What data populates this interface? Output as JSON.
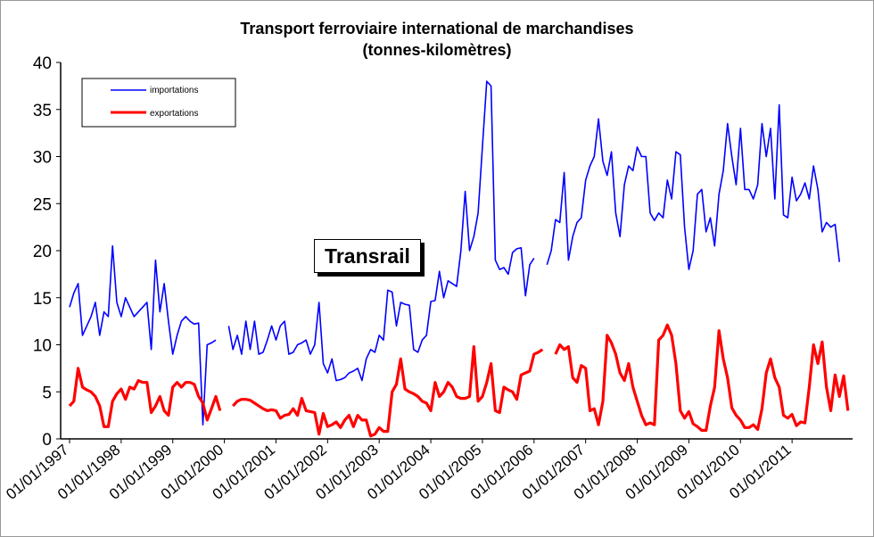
{
  "chart_data": {
    "type": "line",
    "title": "Transport ferroviaire international  de marchandises",
    "subtitle": "(tonnes-kilomètres)",
    "annotation": "Transrail",
    "ylim": [
      0,
      40
    ],
    "y_ticks": [
      "0",
      "5",
      "10",
      "15",
      "20",
      "25",
      "30",
      "35",
      "40"
    ],
    "x_ticks": [
      "01/01/1997",
      "01/01/1998",
      "01/01/1999",
      "01/01/2000",
      "01/01/2001",
      "01/01/2002",
      "01/01/2003",
      "01/01/2004",
      "01/01/2005",
      "01/01/2006",
      "01/01/2007",
      "01/01/2008",
      "01/01/2009",
      "01/01/2010",
      "01/01/2011"
    ],
    "grid": false,
    "legend_position": "top-left",
    "x_start": "1997-01",
    "series": [
      {
        "name": "importations",
        "color": "#0000ff",
        "values": [
          14,
          15.5,
          16.5,
          11,
          12,
          13,
          14.5,
          11,
          13.5,
          13,
          20.5,
          14.5,
          13,
          15,
          14,
          13,
          13.5,
          14,
          14.5,
          9.5,
          19,
          13.5,
          16.5,
          12.5,
          9,
          11,
          12.5,
          13,
          12.5,
          12.2,
          12.3,
          1.5,
          10,
          10.2,
          10.5,
          null,
          null,
          12,
          9.5,
          11,
          9,
          12.5,
          9.5,
          12.5,
          9,
          9.2,
          10.5,
          12,
          10.5,
          12,
          12.5,
          9,
          9.2,
          10,
          10.2,
          10.5,
          9,
          10,
          14.5,
          8,
          7,
          8.5,
          6.2,
          6.3,
          6.5,
          7,
          7.2,
          7.5,
          6.2,
          8.5,
          9.5,
          9.2,
          11,
          10.5,
          15.8,
          15.6,
          12,
          14.5,
          14.3,
          14.2,
          9.5,
          9.2,
          10.5,
          11,
          14.6,
          14.7,
          17.8,
          15,
          16.8,
          16.5,
          16.2,
          20,
          26.3,
          20,
          21.5,
          24,
          31,
          38,
          37.5,
          19,
          18,
          18.2,
          17.5,
          19.8,
          20.2,
          20.3,
          15.2,
          18.5,
          19.2,
          null,
          null,
          18.5,
          20,
          23.3,
          23,
          28.3,
          19,
          21.5,
          23,
          23.5,
          27.5,
          29,
          30,
          34,
          29.5,
          28,
          30.5,
          24,
          21.5,
          27,
          29,
          28.5,
          31,
          30,
          30,
          24,
          23.2,
          24,
          23.5,
          27.5,
          25.5,
          30.5,
          30.2,
          22.5,
          18,
          20,
          26,
          26.5,
          22,
          23.5,
          20.5,
          26,
          28.5,
          33.5,
          30,
          27,
          33,
          26.5,
          26.5,
          25.5,
          27,
          33.5,
          30,
          33,
          25.5,
          35.5,
          23.8,
          23.5,
          27.8,
          25.3,
          26,
          27.2,
          25.5,
          29,
          26.5,
          22,
          23,
          22.5,
          22.8,
          18.8
        ]
      },
      {
        "name": "exportations",
        "color": "#ff0000",
        "values": [
          3.5,
          4,
          7.5,
          5.5,
          5.2,
          5,
          4.5,
          3.5,
          1.3,
          1.3,
          4,
          4.8,
          5.3,
          4.2,
          5.5,
          5.3,
          6.2,
          6,
          6,
          2.8,
          3.5,
          4.5,
          3,
          2.5,
          5.5,
          6,
          5.5,
          6,
          6,
          5.8,
          4.5,
          3.8,
          2,
          3.2,
          4.5,
          3,
          null,
          null,
          3.5,
          4,
          4.2,
          4.2,
          4.1,
          3.8,
          3.5,
          3.2,
          3,
          3.1,
          3,
          2.2,
          2.5,
          2.6,
          3.2,
          2.5,
          4.3,
          3,
          2.9,
          2.8,
          0.5,
          2.7,
          1.3,
          1.5,
          1.8,
          1.2,
          2,
          2.5,
          1.3,
          2.5,
          2,
          2,
          0.3,
          0.5,
          1.2,
          0.8,
          0.8,
          5,
          5.8,
          8.5,
          5.3,
          5,
          4.8,
          4.5,
          4,
          3.8,
          3,
          6,
          4.5,
          5,
          6,
          5.5,
          4.5,
          4.3,
          4.3,
          4.5,
          9.8,
          4,
          4.5,
          6,
          8,
          3,
          2.8,
          5.5,
          5.2,
          5,
          4.2,
          6.8,
          7,
          7.2,
          9,
          9.2,
          9.5,
          null,
          null,
          9,
          10,
          9.5,
          9.8,
          6.5,
          6,
          7.8,
          7.5,
          3,
          3.2,
          1.5,
          4,
          11,
          10.2,
          9,
          7,
          6.2,
          8,
          5.5,
          4,
          2.5,
          1.5,
          1.7,
          1.5,
          10.5,
          11,
          12.1,
          11,
          8,
          3,
          2.2,
          2.9,
          1.6,
          1.3,
          0.9,
          0.9,
          3.5,
          5.5,
          11.5,
          8.5,
          6.5,
          3.3,
          2.5,
          2,
          1.2,
          1.2,
          1.5,
          1,
          3.2,
          7,
          8.5,
          6.5,
          5.5,
          2.5,
          2.2,
          2.6,
          1.4,
          1.8,
          1.7,
          5.5,
          10,
          8,
          10.3,
          5.5,
          3,
          6.8,
          4.5,
          6.7,
          3
        ]
      }
    ]
  }
}
